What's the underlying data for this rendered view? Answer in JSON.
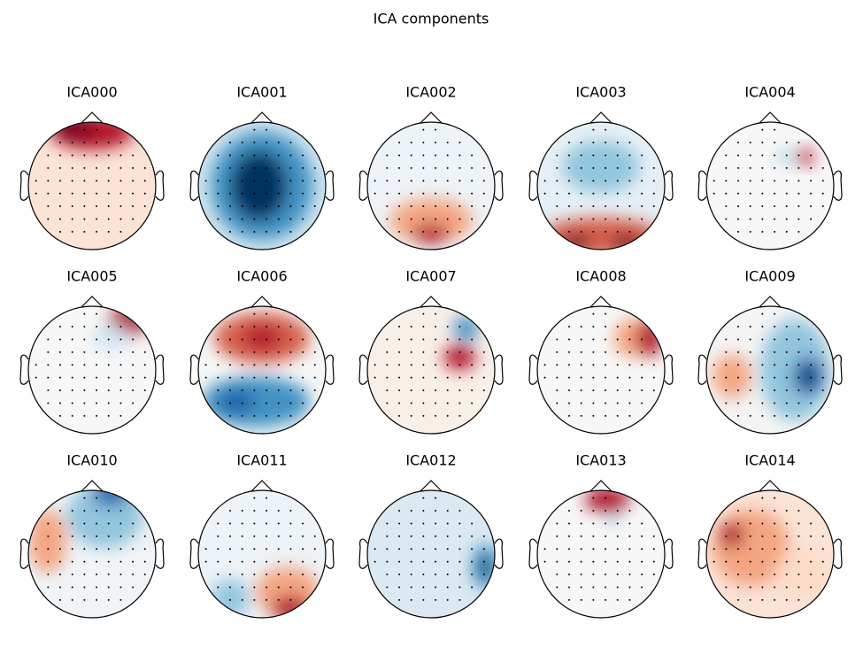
{
  "title": "ICA components",
  "components": [
    {
      "label": "ICA000"
    },
    {
      "label": "ICA001"
    },
    {
      "label": "ICA002"
    },
    {
      "label": "ICA003"
    },
    {
      "label": "ICA004"
    },
    {
      "label": "ICA005"
    },
    {
      "label": "ICA006"
    },
    {
      "label": "ICA007"
    },
    {
      "label": "ICA008"
    },
    {
      "label": "ICA009"
    },
    {
      "label": "ICA010"
    },
    {
      "label": "ICA011"
    },
    {
      "label": "ICA012"
    },
    {
      "label": "ICA013"
    },
    {
      "label": "ICA014"
    }
  ]
}
